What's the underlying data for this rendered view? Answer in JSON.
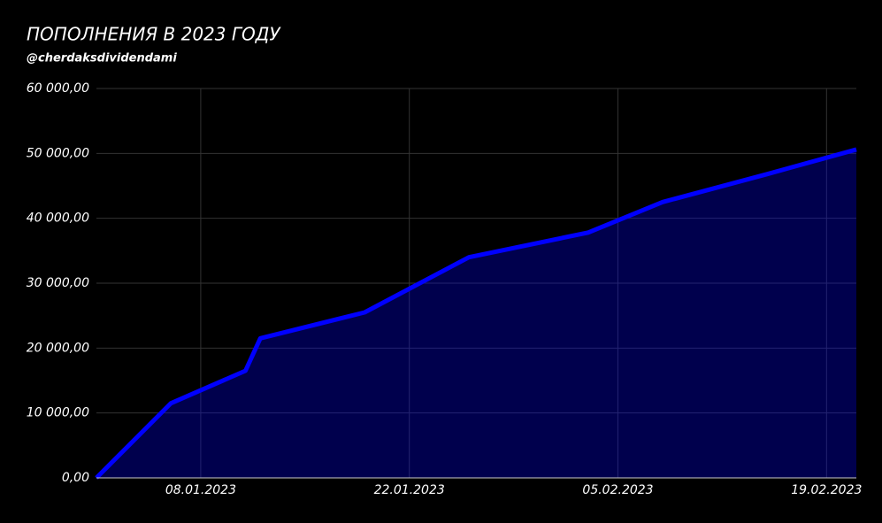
{
  "chart_data": {
    "type": "area",
    "title": "ПОПОЛНЕНИЯ В 2023 ГОДУ",
    "subtitle": "@cherdaksdividendami",
    "x": [
      "01.01.2023",
      "06.01.2023",
      "11.01.2023",
      "12.01.2023",
      "19.01.2023",
      "26.01.2023",
      "03.02.2023",
      "08.02.2023",
      "15.02.2023",
      "21.02.2023"
    ],
    "series": [
      {
        "name": "Пополнения",
        "color": "#0000ff",
        "values": [
          0,
          11500,
          16500,
          21500,
          25500,
          34000,
          37800,
          42500,
          46800,
          50600
        ]
      }
    ],
    "xlim": [
      "01.01.2023",
      "21.02.2023"
    ],
    "xticks": [
      "08.01.2023",
      "22.01.2023",
      "05.02.2023",
      "19.02.2023"
    ],
    "ylim": [
      0,
      60000
    ],
    "yticks": [
      {
        "value": 0,
        "label": "0,00"
      },
      {
        "value": 10000,
        "label": "10 000,00"
      },
      {
        "value": 20000,
        "label": "20 000,00"
      },
      {
        "value": 30000,
        "label": "30 000,00"
      },
      {
        "value": 40000,
        "label": "40 000,00"
      },
      {
        "value": 50000,
        "label": "50 000,00"
      },
      {
        "value": 60000,
        "label": "60 000,00"
      }
    ],
    "grid": true
  }
}
